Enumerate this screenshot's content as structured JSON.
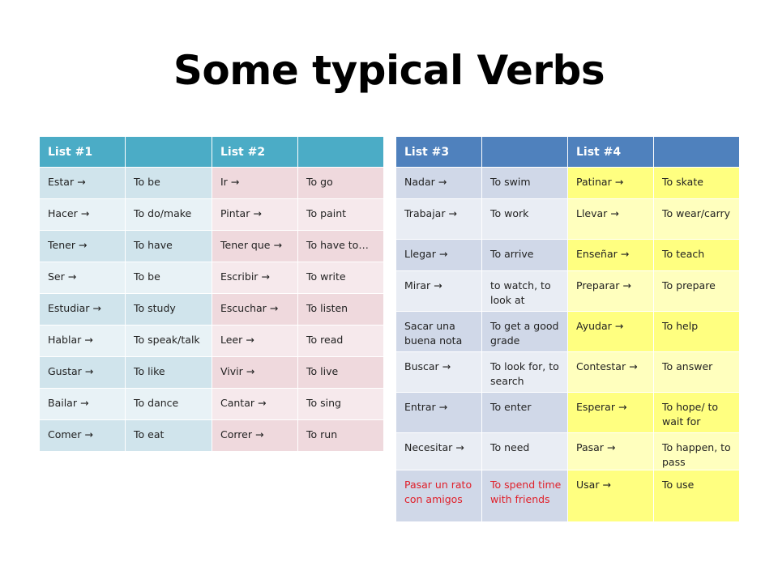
{
  "title": "Some typical Verbs",
  "table_left": {
    "headers": [
      "List #1",
      "",
      "List #2",
      ""
    ],
    "rows": [
      [
        "Estar    →",
        "To be",
        "Ir      →",
        "To go"
      ],
      [
        "Hacer   →",
        "To do/make",
        "Pintar  →",
        "To paint"
      ],
      [
        "Tener    →",
        "To have",
        "Tener que →",
        "To have to…"
      ],
      [
        "Ser     →",
        "To be",
        "Escribir →",
        "To write"
      ],
      [
        "Estudiar   →",
        "To study",
        "Escuchar →",
        "To listen"
      ],
      [
        "Hablar   →",
        "To speak/talk",
        "Leer   →",
        "To read"
      ],
      [
        "Gustar     →",
        "To like",
        "Vivir   →",
        "To live"
      ],
      [
        "Bailar    →",
        "To dance",
        "Cantar  →",
        "To sing"
      ],
      [
        "Comer  →",
        "To eat",
        "Correr   →",
        "To run"
      ]
    ]
  },
  "table_right": {
    "headers": [
      "List #3",
      "",
      "List #4",
      ""
    ],
    "rows": [
      [
        "Nadar  →",
        "To swim",
        "Patinar  →",
        "To skate"
      ],
      [
        "Trabajar  →",
        "To work",
        "Llevar  →",
        "To wear/carry"
      ],
      [
        "Llegar   →",
        "To arrive",
        "Enseñar  →",
        "To teach"
      ],
      [
        "Mirar    →",
        "to watch, to look at",
        "Preparar  →",
        "To prepare"
      ],
      [
        "Sacar una buena nota",
        "To get a good grade",
        "Ayudar    →",
        "To help"
      ],
      [
        "Buscar  →",
        "To look for, to search",
        "Contestar  →",
        "To answer"
      ],
      [
        "Entrar   →",
        "To enter",
        "Esperar   →",
        "To hope/ to wait for"
      ],
      [
        "Necesitar →",
        "To need",
        "Pasar  →",
        "To happen, to pass"
      ],
      [
        "Pasar un rato con amigos",
        "To spend time with friends",
        "Usar  →",
        "To use"
      ]
    ],
    "highlight_color": "#E0202A"
  }
}
